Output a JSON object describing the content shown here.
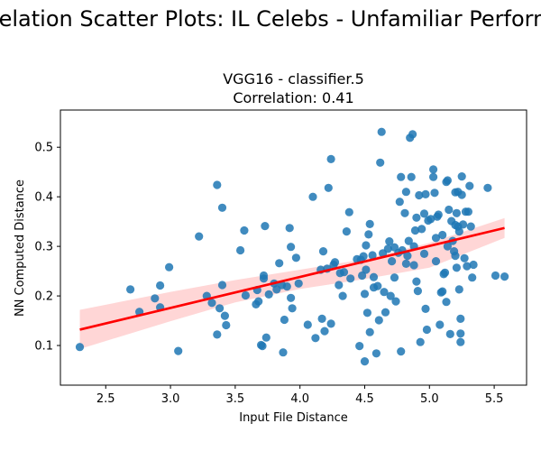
{
  "figure": {
    "suptitle": "Correlation Scatter Plots: IL Celebs - Unfamiliar Performers"
  },
  "chart_data": {
    "type": "scatter",
    "title_line1": "VGG16 - classifier.5",
    "title_line2": "Correlation: 0.41",
    "xlabel": "Input File Distance",
    "ylabel": "NN Computed Distance",
    "xlim": [
      2.15,
      5.75
    ],
    "ylim": [
      0.02,
      0.575
    ],
    "xticks": [
      2.5,
      3.0,
      3.5,
      4.0,
      4.5,
      5.0,
      5.5
    ],
    "xtick_labels": [
      "2.5",
      "3.0",
      "3.5",
      "4.0",
      "4.5",
      "5.0",
      "5.5"
    ],
    "yticks": [
      0.1,
      0.2,
      0.3,
      0.4,
      0.5
    ],
    "ytick_labels": [
      "0.1",
      "0.2",
      "0.3",
      "0.4",
      "0.5"
    ],
    "grid": false,
    "legend": "none",
    "point_color": "#1f77b4",
    "regression": {
      "x": [
        2.3,
        5.58
      ],
      "y": [
        0.132,
        0.337
      ],
      "color": "#ff0000",
      "band_color": "#ffcccc",
      "band_upper": [
        [
          2.3,
          0.172
        ],
        [
          3.0,
          0.208
        ],
        [
          3.5,
          0.232
        ],
        [
          4.0,
          0.253
        ],
        [
          4.5,
          0.274
        ],
        [
          5.0,
          0.307
        ],
        [
          5.58,
          0.357
        ]
      ],
      "band_lower": [
        [
          2.3,
          0.093
        ],
        [
          3.0,
          0.149
        ],
        [
          3.5,
          0.187
        ],
        [
          4.0,
          0.214
        ],
        [
          4.5,
          0.234
        ],
        [
          5.0,
          0.257
        ],
        [
          5.58,
          0.317
        ]
      ]
    },
    "points": [
      [
        2.3,
        0.097
      ],
      [
        2.69,
        0.213
      ],
      [
        2.76,
        0.168
      ],
      [
        2.88,
        0.195
      ],
      [
        2.92,
        0.221
      ],
      [
        2.92,
        0.177
      ],
      [
        2.99,
        0.258
      ],
      [
        3.06,
        0.089
      ],
      [
        3.22,
        0.32
      ],
      [
        3.28,
        0.2
      ],
      [
        3.32,
        0.186
      ],
      [
        3.36,
        0.122
      ],
      [
        3.36,
        0.424
      ],
      [
        3.38,
        0.175
      ],
      [
        3.4,
        0.378
      ],
      [
        3.4,
        0.222
      ],
      [
        3.42,
        0.16
      ],
      [
        3.43,
        0.141
      ],
      [
        3.54,
        0.292
      ],
      [
        3.57,
        0.332
      ],
      [
        3.58,
        0.201
      ],
      [
        3.66,
        0.183
      ],
      [
        3.67,
        0.212
      ],
      [
        3.68,
        0.189
      ],
      [
        3.7,
        0.101
      ],
      [
        3.71,
        0.099
      ],
      [
        3.72,
        0.241
      ],
      [
        3.72,
        0.235
      ],
      [
        3.73,
        0.341
      ],
      [
        3.74,
        0.116
      ],
      [
        3.76,
        0.203
      ],
      [
        3.8,
        0.225
      ],
      [
        3.82,
        0.213
      ],
      [
        3.84,
        0.266
      ],
      [
        3.86,
        0.222
      ],
      [
        3.87,
        0.086
      ],
      [
        3.88,
        0.152
      ],
      [
        3.9,
        0.219
      ],
      [
        3.92,
        0.337
      ],
      [
        3.93,
        0.196
      ],
      [
        3.93,
        0.299
      ],
      [
        3.94,
        0.175
      ],
      [
        3.97,
        0.277
      ],
      [
        3.99,
        0.225
      ],
      [
        4.06,
        0.142
      ],
      [
        4.1,
        0.4
      ],
      [
        4.12,
        0.115
      ],
      [
        4.16,
        0.253
      ],
      [
        4.17,
        0.154
      ],
      [
        4.18,
        0.29
      ],
      [
        4.19,
        0.129
      ],
      [
        4.21,
        0.255
      ],
      [
        4.22,
        0.418
      ],
      [
        4.24,
        0.144
      ],
      [
        4.24,
        0.476
      ],
      [
        4.26,
        0.263
      ],
      [
        4.27,
        0.268
      ],
      [
        4.3,
        0.222
      ],
      [
        4.31,
        0.246
      ],
      [
        4.33,
        0.2
      ],
      [
        4.34,
        0.248
      ],
      [
        4.36,
        0.33
      ],
      [
        4.38,
        0.369
      ],
      [
        4.39,
        0.235
      ],
      [
        4.44,
        0.274
      ],
      [
        4.46,
        0.099
      ],
      [
        4.47,
        0.273
      ],
      [
        4.48,
        0.241
      ],
      [
        4.49,
        0.28
      ],
      [
        4.5,
        0.204
      ],
      [
        4.5,
        0.068
      ],
      [
        4.51,
        0.253
      ],
      [
        4.51,
        0.302
      ],
      [
        4.52,
        0.166
      ],
      [
        4.53,
        0.324
      ],
      [
        4.54,
        0.345
      ],
      [
        4.54,
        0.127
      ],
      [
        4.56,
        0.282
      ],
      [
        4.57,
        0.217
      ],
      [
        4.57,
        0.238
      ],
      [
        4.59,
        0.084
      ],
      [
        4.6,
        0.22
      ],
      [
        4.61,
        0.151
      ],
      [
        4.62,
        0.469
      ],
      [
        4.63,
        0.531
      ],
      [
        4.64,
        0.286
      ],
      [
        4.65,
        0.208
      ],
      [
        4.66,
        0.167
      ],
      [
        4.68,
        0.295
      ],
      [
        4.69,
        0.31
      ],
      [
        4.7,
        0.2
      ],
      [
        4.71,
        0.27
      ],
      [
        4.73,
        0.298
      ],
      [
        4.73,
        0.237
      ],
      [
        4.74,
        0.189
      ],
      [
        4.76,
        0.287
      ],
      [
        4.77,
        0.39
      ],
      [
        4.78,
        0.44
      ],
      [
        4.78,
        0.088
      ],
      [
        4.79,
        0.292
      ],
      [
        4.81,
        0.367
      ],
      [
        4.82,
        0.41
      ],
      [
        4.82,
        0.265
      ],
      [
        4.83,
        0.281
      ],
      [
        4.84,
        0.311
      ],
      [
        4.85,
        0.519
      ],
      [
        4.86,
        0.44
      ],
      [
        4.87,
        0.526
      ],
      [
        4.88,
        0.262
      ],
      [
        4.88,
        0.3
      ],
      [
        4.89,
        0.332
      ],
      [
        4.9,
        0.229
      ],
      [
        4.9,
        0.358
      ],
      [
        4.91,
        0.21
      ],
      [
        4.92,
        0.403
      ],
      [
        4.93,
        0.107
      ],
      [
        4.94,
        0.335
      ],
      [
        4.96,
        0.366
      ],
      [
        4.96,
        0.285
      ],
      [
        4.97,
        0.174
      ],
      [
        4.97,
        0.405
      ],
      [
        4.98,
        0.132
      ],
      [
        4.99,
        0.352
      ],
      [
        5.01,
        0.355
      ],
      [
        5.03,
        0.44
      ],
      [
        5.03,
        0.455
      ],
      [
        5.04,
        0.408
      ],
      [
        5.05,
        0.317
      ],
      [
        5.05,
        0.27
      ],
      [
        5.06,
        0.36
      ],
      [
        5.07,
        0.364
      ],
      [
        5.08,
        0.142
      ],
      [
        5.09,
        0.207
      ],
      [
        5.1,
        0.209
      ],
      [
        5.1,
        0.323
      ],
      [
        5.11,
        0.244
      ],
      [
        5.12,
        0.247
      ],
      [
        5.13,
        0.188
      ],
      [
        5.13,
        0.43
      ],
      [
        5.14,
        0.433
      ],
      [
        5.14,
        0.3
      ],
      [
        5.15,
        0.374
      ],
      [
        5.16,
        0.123
      ],
      [
        5.17,
        0.351
      ],
      [
        5.18,
        0.311
      ],
      [
        5.19,
        0.29
      ],
      [
        5.2,
        0.409
      ],
      [
        5.2,
        0.343
      ],
      [
        5.2,
        0.281
      ],
      [
        5.21,
        0.257
      ],
      [
        5.21,
        0.367
      ],
      [
        5.22,
        0.41
      ],
      [
        5.22,
        0.34
      ],
      [
        5.23,
        0.33
      ],
      [
        5.23,
        0.213
      ],
      [
        5.24,
        0.154
      ],
      [
        5.24,
        0.124
      ],
      [
        5.24,
        0.107
      ],
      [
        5.25,
        0.404
      ],
      [
        5.25,
        0.441
      ],
      [
        5.26,
        0.344
      ],
      [
        5.27,
        0.276
      ],
      [
        5.28,
        0.37
      ],
      [
        5.29,
        0.26
      ],
      [
        5.3,
        0.37
      ],
      [
        5.31,
        0.422
      ],
      [
        5.32,
        0.34
      ],
      [
        5.33,
        0.237
      ],
      [
        5.34,
        0.263
      ],
      [
        5.45,
        0.418
      ],
      [
        5.51,
        0.241
      ],
      [
        5.58,
        0.239
      ]
    ]
  }
}
